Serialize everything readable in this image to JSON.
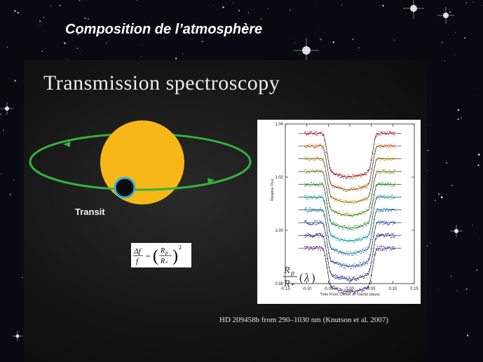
{
  "slide": {
    "title": "Composition de l’atmosphère"
  },
  "panel": {
    "title": "Transmission spectroscopy",
    "transit_label": "Transit",
    "formula_text": "Δf / f = (Rp / R*)²",
    "ratio_text": "Rp / R* (λ)",
    "caption": "HD 209458b from 290–1030 nm (Knutson et al. 2007)",
    "colors": {
      "star": "#f7b817",
      "orbit": "#33b23a",
      "planet": "#0a0a0a",
      "planet_ring": "#26b6e0"
    }
  },
  "chart_data": {
    "type": "line",
    "xlabel": "Time From Center of Transit (days)",
    "ylabel": "Relative Flux",
    "xlim": [
      -0.15,
      0.15
    ],
    "ylim": [
      0.98,
      1.04
    ],
    "x_ticks": [
      "-0.15",
      "-0.10",
      "-0.05",
      "0.00",
      "0.05",
      "0.10",
      "0.15"
    ],
    "y_ticks": [
      "0.98",
      "1.00",
      "1.02",
      "1.04"
    ],
    "transit": {
      "ingress": -0.064,
      "egress": 0.064,
      "depth": 0.0146,
      "offset_step": 0.0048
    },
    "series": [
      {
        "color": "#d9262a",
        "baseline": 1.0365
      },
      {
        "color": "#ef7a1f",
        "baseline": 1.0317
      },
      {
        "color": "#e3b51c",
        "baseline": 1.0269
      },
      {
        "color": "#8fc23a",
        "baseline": 1.0221
      },
      {
        "color": "#3fb14a",
        "baseline": 1.0173
      },
      {
        "color": "#2fc6d8",
        "baseline": 1.0125
      },
      {
        "color": "#2a9ad8",
        "baseline": 1.0077
      },
      {
        "color": "#2c63c8",
        "baseline": 1.0029
      },
      {
        "color": "#3c3aa6",
        "baseline": 0.9981
      },
      {
        "color": "#5a2a9a",
        "baseline": 0.9933
      }
    ]
  }
}
